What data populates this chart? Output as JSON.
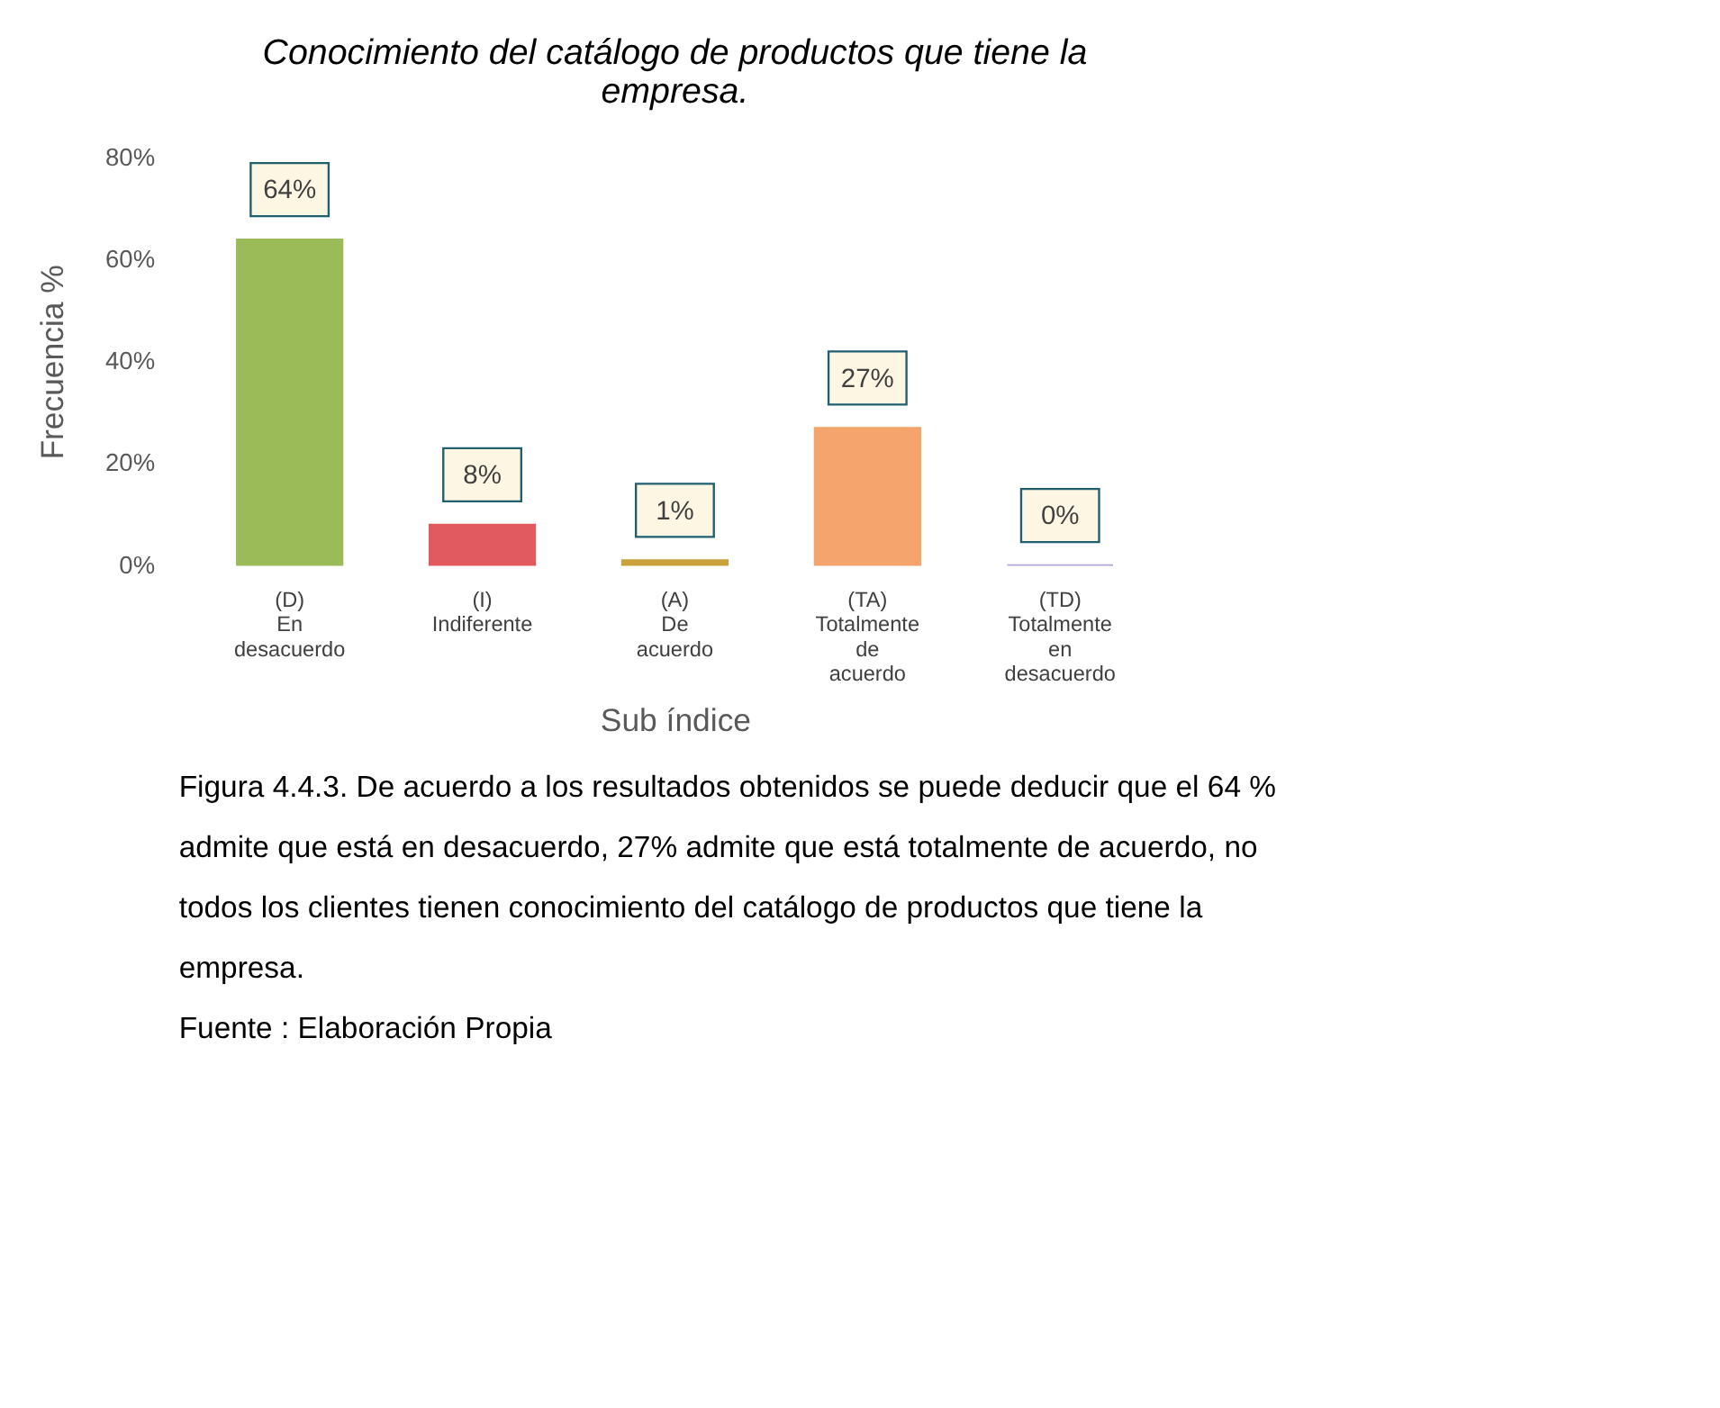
{
  "chart_data": {
    "type": "bar",
    "title": "Conocimiento del catálogo de productos que tiene la empresa.",
    "xlabel": "Sub índice",
    "ylabel": "Frecuencia %",
    "categories": [
      "(D) En desacuerdo",
      "(I) Indiferente",
      "(A) De acuerdo",
      "(TA) Totalmente de acuerdo",
      "(TD) Totalmente en desacuerdo"
    ],
    "values": [
      64,
      8,
      1,
      27,
      0
    ],
    "colors": [
      "#9bbb59",
      "#e05a5f",
      "#c9a23c",
      "#f4a46c",
      "#b4a7d6"
    ],
    "value_labels": [
      "64%",
      "8%",
      "1%",
      "27%",
      "0%"
    ],
    "ylim": [
      0,
      80
    ],
    "yticks": [
      {
        "value": 0,
        "label": "0%"
      },
      {
        "value": 20,
        "label": "20%"
      },
      {
        "value": 40,
        "label": "40%"
      },
      {
        "value": 60,
        "label": "60%"
      },
      {
        "value": 80,
        "label": "80%"
      }
    ],
    "grid": false,
    "annotations": [
      "Figura 4.4.3. De acuerdo a los resultados obtenidos se puede deducir que el 64 % admite que está en desacuerdo, 27% admite que está totalmente de acuerdo, no todos los clientes tienen conocimiento del catálogo de productos que tiene la empresa.",
      "Fuente : Elaboración Propia"
    ]
  }
}
